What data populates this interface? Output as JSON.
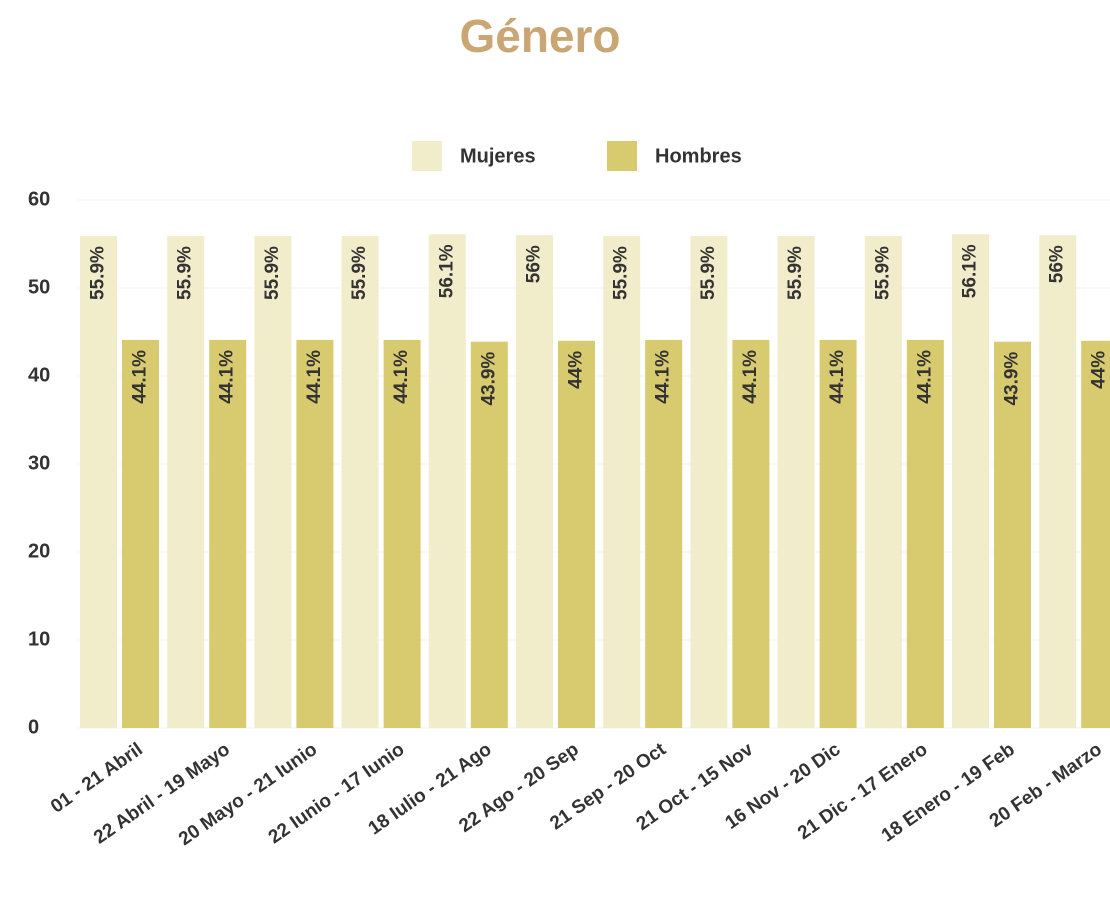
{
  "chart_data": {
    "type": "bar",
    "title": "Género",
    "categories": [
      "01 - 21 Abril",
      "22 Abril - 19 Mayo",
      "20 Mayo - 21 Iunio",
      "22 Iunio - 17 Iunio",
      "18 Iulio - 21 Ago",
      "22 Ago - 20 Sep",
      "21 Sep - 20 Oct",
      "21 Oct - 15 Nov",
      "16 Nov - 20 Dic",
      "21 Dic - 17 Enero",
      "18 Enero - 19 Feb",
      "20 Feb - Marzo"
    ],
    "series": [
      {
        "name": "Mujeres",
        "color": "#f1ecc9",
        "values": [
          55.9,
          55.9,
          55.9,
          55.9,
          56.1,
          56,
          55.9,
          55.9,
          55.9,
          55.9,
          56.1,
          56
        ],
        "value_labels": [
          "55.9%",
          "55.9%",
          "55.9%",
          "55.9%",
          "56.1%",
          "56%",
          "55.9%",
          "55.9%",
          "55.9%",
          "55.9%",
          "56.1%",
          "56%"
        ]
      },
      {
        "name": "Hombres",
        "color": "#d8ca6e",
        "values": [
          44.1,
          44.1,
          44.1,
          44.1,
          43.9,
          44,
          44.1,
          44.1,
          44.1,
          44.1,
          43.9,
          44
        ],
        "value_labels": [
          "44.1%",
          "44.1%",
          "44.1%",
          "44.1%",
          "43.9%",
          "44%",
          "44.1%",
          "44.1%",
          "44.1%",
          "44.1%",
          "43.9%",
          "44%"
        ]
      }
    ],
    "ylim": [
      0,
      60
    ],
    "yticks": [
      0,
      10,
      20,
      30,
      40,
      50,
      60
    ],
    "grid": true
  }
}
